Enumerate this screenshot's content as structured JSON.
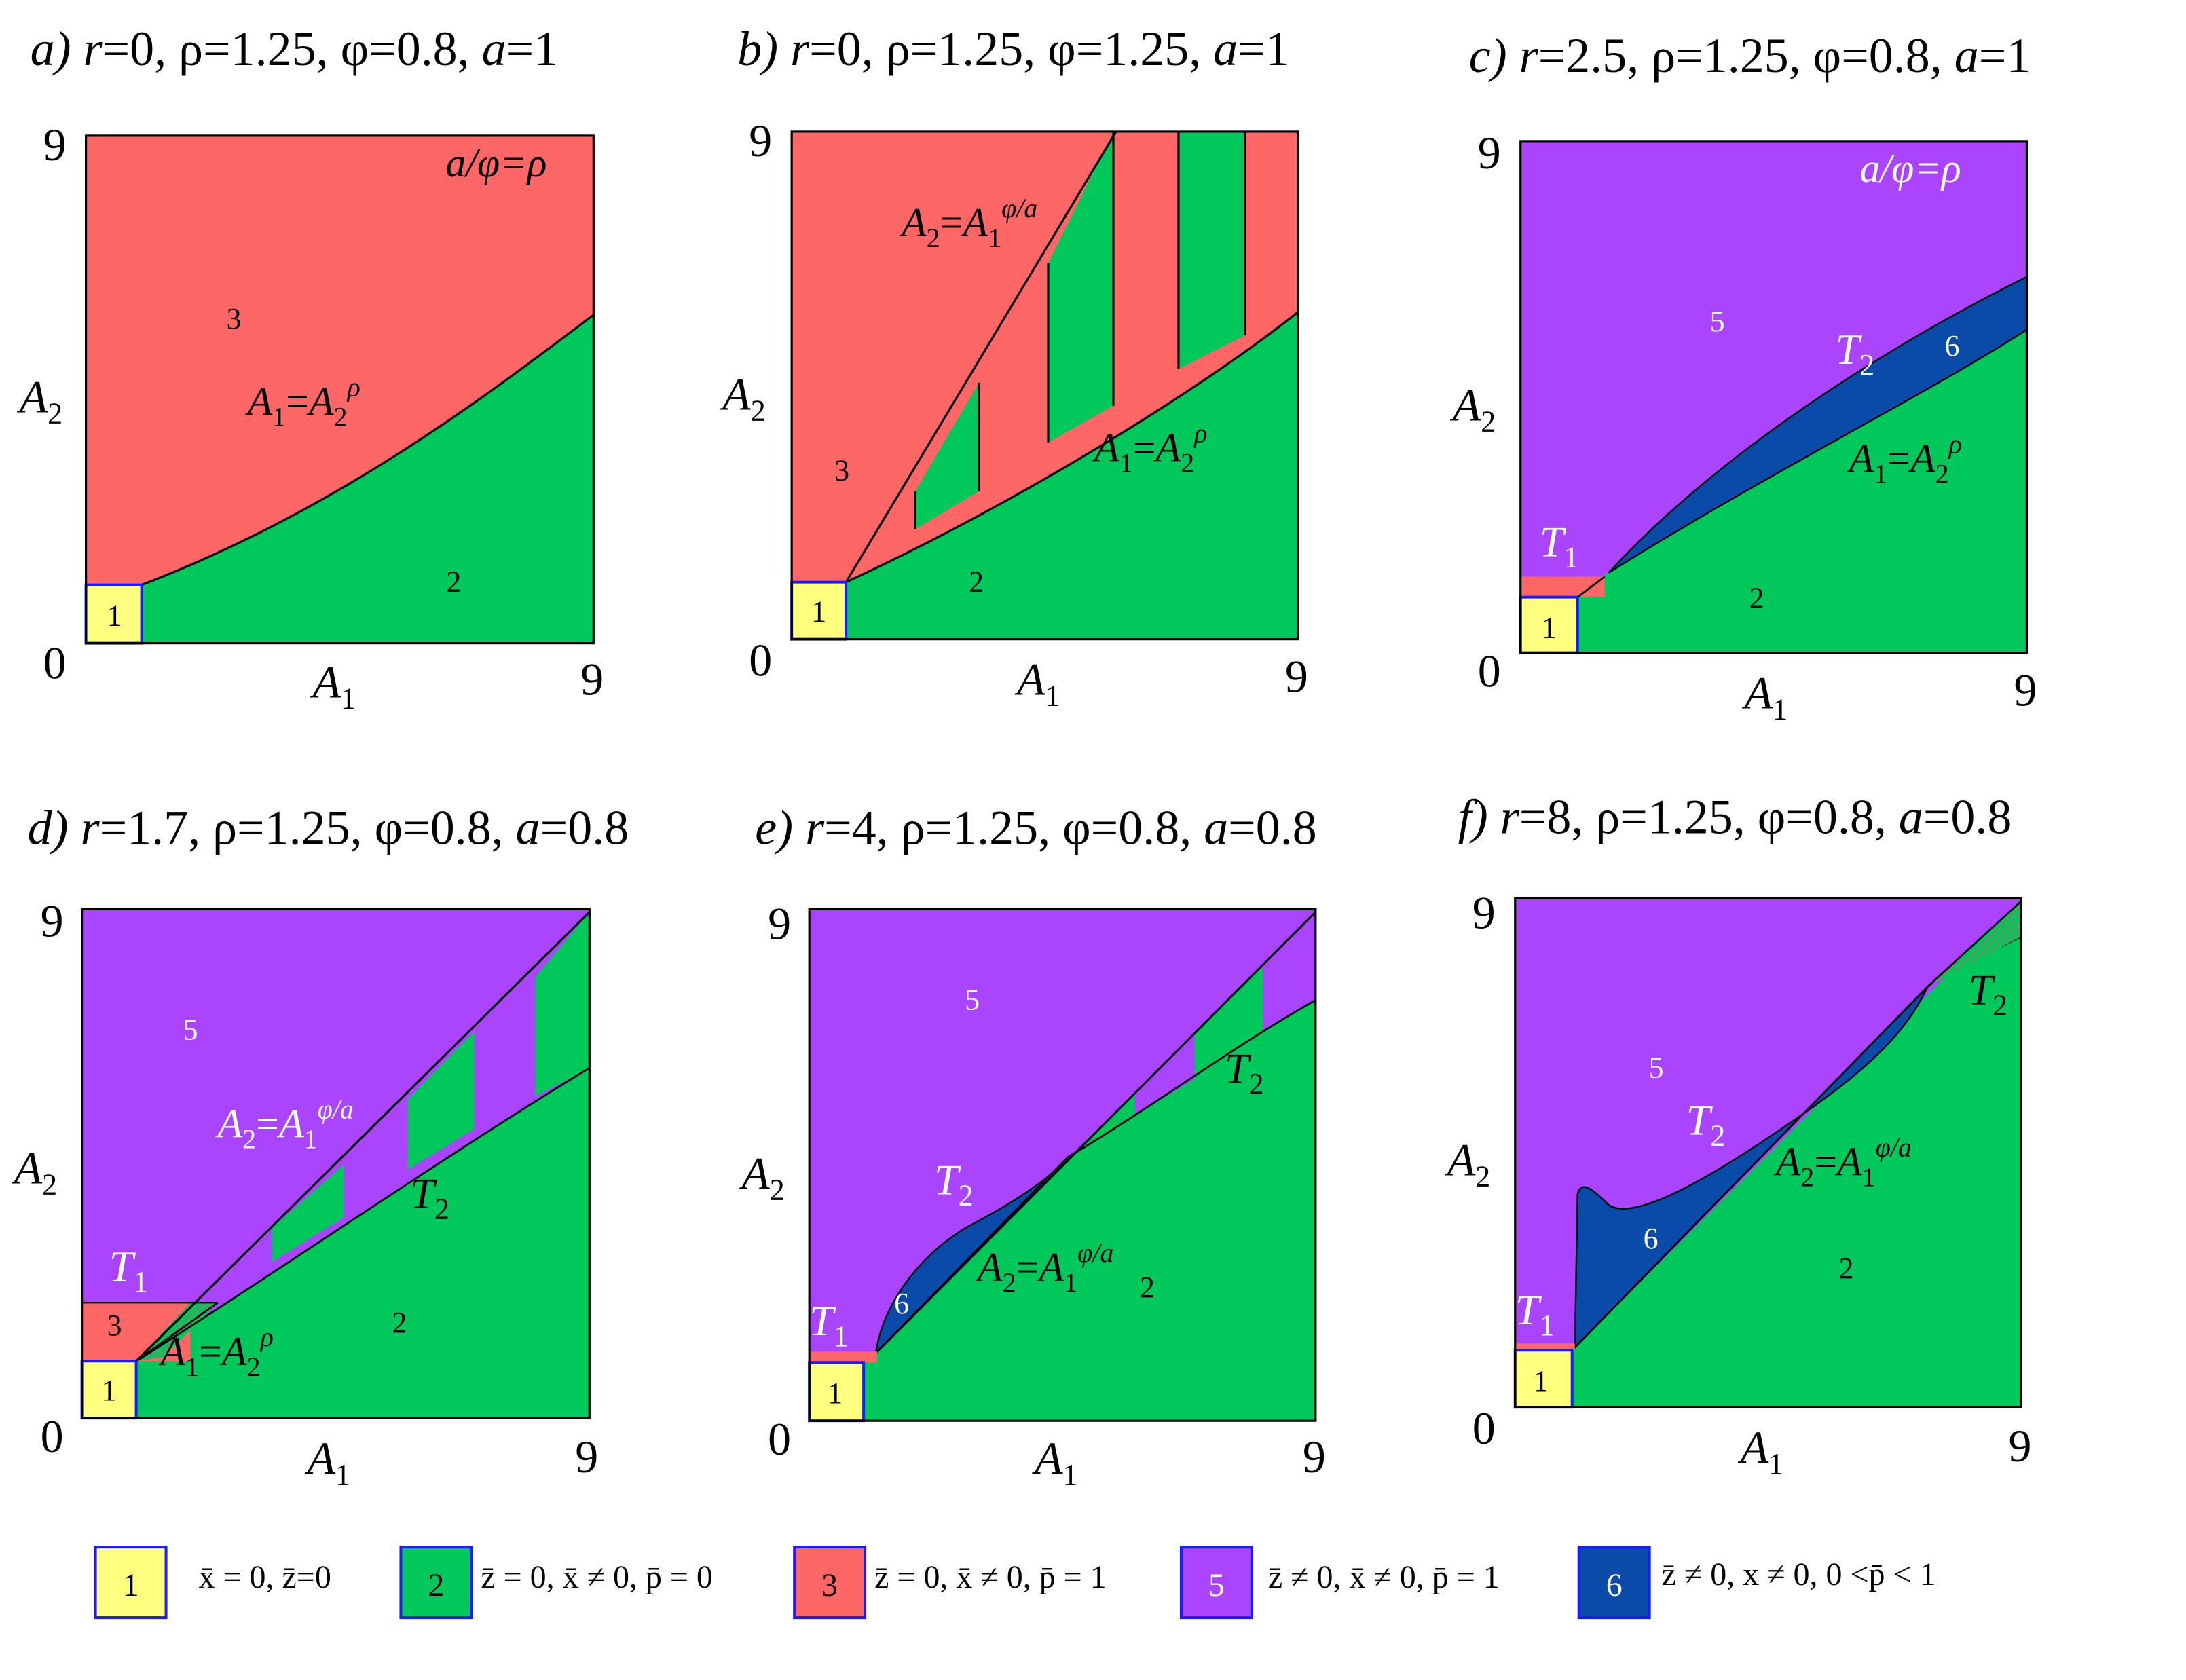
{
  "axes": {
    "min": "0",
    "max": "9",
    "x_sym": "A",
    "x_sub": "1",
    "y_sym": "A",
    "y_sub": "2"
  },
  "curves": {
    "A1A2": {
      "lhs": "A",
      "lhs_sub": "1",
      "eq": "=",
      "rhs": "A",
      "rhs_sub": "2",
      "exp": "ρ"
    },
    "A2A1": {
      "lhs": "A",
      "lhs_sub": "2",
      "eq": "=",
      "rhs": "A",
      "rhs_sub": "1",
      "exp": "φ/a"
    },
    "T1": {
      "sym": "T",
      "sub": "1"
    },
    "T2": {
      "sym": "T",
      "sub": "2"
    }
  },
  "panels": {
    "a": {
      "letter": "a) ",
      "r_sym": "r",
      "r_rest": "=0",
      "mid": ", ρ=1.25, φ=0.8, ",
      "a_sym": "a",
      "a_rest": "=1",
      "ratio": "a/φ=ρ",
      "regions": [
        "1",
        "3",
        "2"
      ]
    },
    "b": {
      "letter": "b) ",
      "r_sym": "r",
      "r_rest": "=0",
      "mid": ", ρ=1.25, φ=1.25, ",
      "a_sym": "a",
      "a_rest": "=1",
      "regions": [
        "1",
        "3",
        "2"
      ]
    },
    "c": {
      "letter": "c) ",
      "r_sym": "r",
      "r_rest": "=2.5",
      "mid": ", ρ=1.25, φ=0.8, ",
      "a_sym": "a",
      "a_rest": "=1",
      "ratio": "a/φ=ρ",
      "regions": [
        "1",
        "2",
        "5",
        "6"
      ]
    },
    "d": {
      "letter": "d) ",
      "r_sym": "r",
      "r_rest": "=1.7",
      "mid": ", ρ=1.25, φ=0.8, ",
      "a_sym": "a",
      "a_rest": "=0.8",
      "regions": [
        "1",
        "2",
        "3",
        "5"
      ]
    },
    "e": {
      "letter": "e) ",
      "r_sym": "r",
      "r_rest": "=4",
      "mid": ", ρ=1.25, φ=0.8, ",
      "a_sym": "a",
      "a_rest": "=0.8",
      "regions": [
        "1",
        "2",
        "5",
        "6"
      ]
    },
    "f": {
      "letter": "f) ",
      "r_sym": "r",
      "r_rest": "=8",
      "mid": ", ρ=1.25, φ=0.8, ",
      "a_sym": "a",
      "a_rest": "=0.8",
      "regions": [
        "1",
        "2",
        "5",
        "6"
      ]
    }
  },
  "legend": [
    {
      "num": "1",
      "text": "x̄ = 0, z̄=0"
    },
    {
      "num": "2",
      "text": "z̄ = 0, x̄ ≠ 0, p̄ = 0"
    },
    {
      "num": "3",
      "text": "z̄ = 0, x̄ ≠ 0, p̄ = 1"
    },
    {
      "num": "5",
      "text": "z̄ ≠ 0, x̄ ≠ 0, p̄ = 1"
    },
    {
      "num": "6",
      "text": "z̄ ≠ 0, x ≠ 0,  0 <p̄ < 1"
    }
  ],
  "colors": {
    "region1": "#ffff80",
    "region2": "#00c85a",
    "region3": "#ff6666",
    "region5": "#aa44ff",
    "region6": "#0a4aa8",
    "border": "#1a1aff"
  }
}
